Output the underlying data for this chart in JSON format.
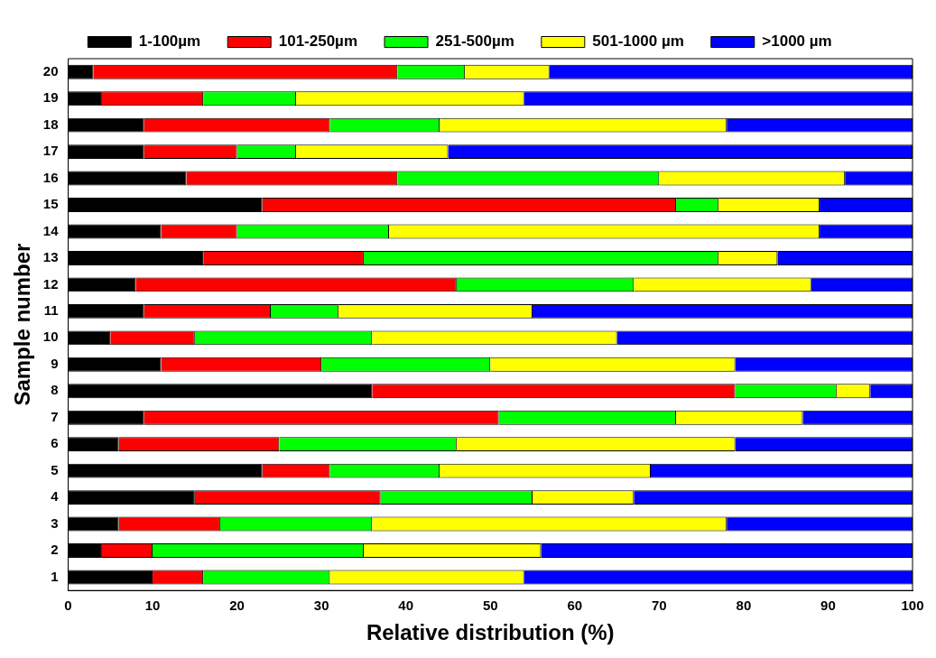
{
  "chart_data": {
    "type": "bar",
    "orientation": "horizontal",
    "stacked": true,
    "xlabel": "Relative distribution (%)",
    "ylabel": "Sample number",
    "categories": [
      "20",
      "19",
      "18",
      "17",
      "16",
      "15",
      "14",
      "13",
      "12",
      "11",
      "10",
      "9",
      "8",
      "7",
      "6",
      "5",
      "4",
      "3",
      "2",
      "1"
    ],
    "series": [
      {
        "name": "1-100µm",
        "color": "#000000",
        "values": [
          3,
          4,
          9,
          9,
          14,
          23,
          11,
          16,
          8,
          9,
          5,
          11,
          36,
          9,
          6,
          23,
          15,
          6,
          4,
          10
        ]
      },
      {
        "name": "101-250µm",
        "color": "#ff0000",
        "values": [
          36,
          12,
          22,
          11,
          25,
          49,
          9,
          19,
          38,
          15,
          10,
          19,
          43,
          42,
          19,
          8,
          22,
          12,
          6,
          6
        ]
      },
      {
        "name": "251-500µm",
        "color": "#00ff00",
        "values": [
          8,
          11,
          13,
          7,
          31,
          5,
          18,
          42,
          21,
          8,
          21,
          20,
          12,
          21,
          21,
          13,
          18,
          18,
          25,
          15
        ]
      },
      {
        "name": "501-1000 µm",
        "color": "#ffff00",
        "values": [
          10,
          27,
          34,
          18,
          22,
          12,
          51,
          7,
          21,
          23,
          29,
          29,
          4,
          15,
          33,
          25,
          12,
          42,
          21,
          23
        ]
      },
      {
        "name": ">1000 µm",
        "color": "#0000ff",
        "values": [
          43,
          46,
          22,
          55,
          8,
          11,
          11,
          16,
          12,
          45,
          35,
          21,
          5,
          13,
          21,
          31,
          33,
          22,
          44,
          46
        ]
      }
    ],
    "xlim": [
      0,
      100
    ],
    "xticks": [
      0,
      10,
      20,
      30,
      40,
      50,
      60,
      70,
      80,
      90,
      100
    ],
    "grid": false,
    "legend": "top"
  }
}
